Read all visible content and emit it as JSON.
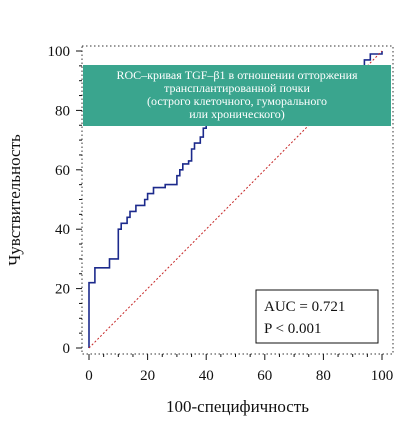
{
  "chart_data": {
    "type": "line",
    "xlabel": "100-специфичность",
    "ylabel": "Чувствительность",
    "xlim": [
      0,
      100
    ],
    "ylim": [
      0,
      100
    ],
    "x_ticks": [
      "0",
      "20",
      "40",
      "60",
      "80",
      "100"
    ],
    "y_ticks": [
      "0",
      "20",
      "40",
      "60",
      "80",
      "100"
    ],
    "grid": "dotted border ticks",
    "annotation_box": {
      "lines": [
        "ROC–кривая TGF–β1 в отношении отторжения",
        "трансплантированной почки",
        "(острого клеточного, гуморального",
        "или хронического)"
      ],
      "color": "#3aa58e"
    },
    "stats": {
      "auc": "AUC = 0.721",
      "p": "P < 0.001"
    },
    "series": [
      {
        "style": "step",
        "color": "#1c2a8c",
        "points": [
          [
            0,
            0
          ],
          [
            0,
            22
          ],
          [
            2,
            22
          ],
          [
            2,
            27
          ],
          [
            7,
            27
          ],
          [
            7,
            30
          ],
          [
            10,
            30
          ],
          [
            10,
            40
          ],
          [
            11,
            40
          ],
          [
            11,
            42
          ],
          [
            13,
            42
          ],
          [
            13,
            44
          ],
          [
            14,
            44
          ],
          [
            14,
            46
          ],
          [
            16,
            46
          ],
          [
            16,
            48
          ],
          [
            19,
            48
          ],
          [
            19,
            50
          ],
          [
            20,
            50
          ],
          [
            20,
            52
          ],
          [
            22,
            52
          ],
          [
            22,
            54
          ],
          [
            26,
            54
          ],
          [
            26,
            55
          ],
          [
            30,
            55
          ],
          [
            30,
            58
          ],
          [
            31,
            58
          ],
          [
            31,
            60
          ],
          [
            32,
            60
          ],
          [
            32,
            62
          ],
          [
            34,
            62
          ],
          [
            34,
            63
          ],
          [
            35,
            63
          ],
          [
            35,
            67
          ],
          [
            36,
            67
          ],
          [
            36,
            69
          ],
          [
            38,
            69
          ],
          [
            38,
            71
          ],
          [
            39,
            71
          ],
          [
            39,
            74
          ],
          [
            40,
            74
          ],
          [
            40,
            78
          ],
          [
            42,
            78
          ],
          [
            42,
            80
          ],
          [
            44,
            80
          ],
          [
            44,
            82
          ],
          [
            46,
            82
          ],
          [
            46,
            84
          ],
          [
            48,
            84
          ],
          [
            48,
            86
          ],
          [
            50,
            86
          ],
          [
            50,
            88
          ],
          [
            90,
            88
          ],
          [
            90,
            92
          ],
          [
            92,
            92
          ],
          [
            92,
            95
          ],
          [
            94,
            95
          ],
          [
            94,
            97
          ],
          [
            96,
            97
          ],
          [
            96,
            99
          ],
          [
            100,
            99
          ],
          [
            100,
            100
          ]
        ]
      },
      {
        "style": "diagonal-reference",
        "color": "#c62828",
        "points": [
          [
            0,
            0
          ],
          [
            100,
            100
          ]
        ]
      }
    ]
  }
}
